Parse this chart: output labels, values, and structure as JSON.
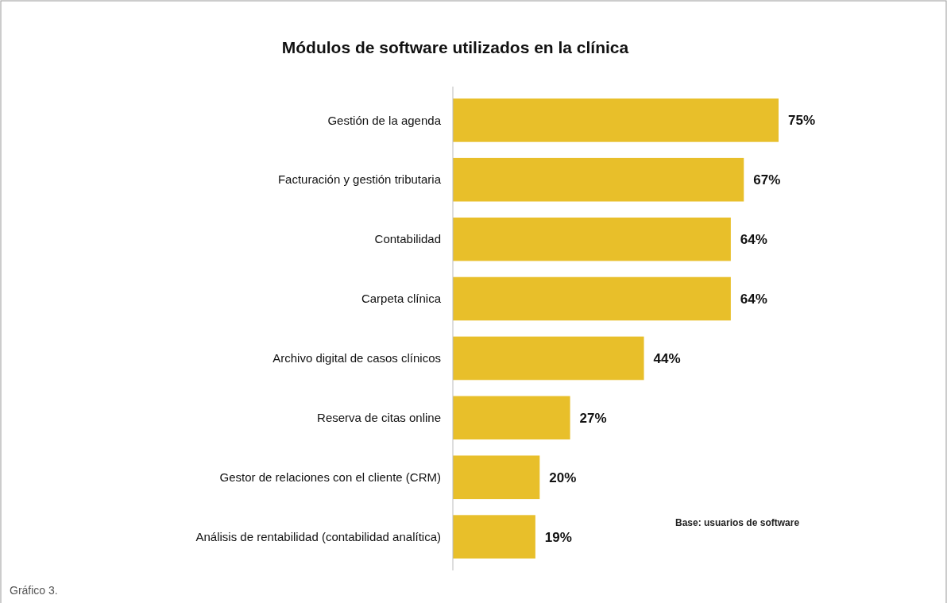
{
  "chart_data": {
    "type": "bar",
    "orientation": "horizontal",
    "title": "Módulos de software utilizados en la clínica",
    "categories": [
      "Gestión de la agenda",
      "Facturación y gestión tributaria",
      "Contabilidad",
      "Carpeta clínica",
      "Archivo digital de casos clínicos",
      "Reserva de citas online",
      "Gestor de relaciones con el cliente (CRM)",
      "Análisis de rentabilidad (contabilidad analítica)"
    ],
    "values": [
      75,
      67,
      64,
      64,
      44,
      27,
      20,
      19
    ],
    "value_labels": [
      "75%",
      "67%",
      "64%",
      "64%",
      "44%",
      "27%",
      "20%",
      "19%"
    ],
    "color": "#e8bf2a",
    "annotations": [
      "Base: usuarios de software",
      "Gráfico 3."
    ]
  }
}
